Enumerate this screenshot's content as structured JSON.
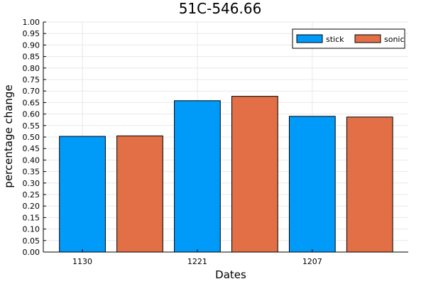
{
  "chart_data": {
    "type": "bar",
    "title": "51C-546.66",
    "xlabel": "Dates",
    "ylabel": "percentage change",
    "ylim": [
      0,
      1.0
    ],
    "ytick_step": 0.05,
    "grid": true,
    "legend_position": "top-right",
    "x_tick_labels": [
      "1130",
      "1221",
      "1207"
    ],
    "bars": [
      {
        "series": "stick",
        "value": 0.503
      },
      {
        "series": "sonic",
        "value": 0.505
      },
      {
        "series": "stick",
        "value": 0.658
      },
      {
        "series": "sonic",
        "value": 0.677
      },
      {
        "series": "stick",
        "value": 0.59
      },
      {
        "series": "sonic",
        "value": 0.587
      }
    ],
    "series": [
      {
        "name": "stick",
        "color": "#009af9"
      },
      {
        "name": "sonic",
        "color": "#e26f46"
      }
    ]
  }
}
